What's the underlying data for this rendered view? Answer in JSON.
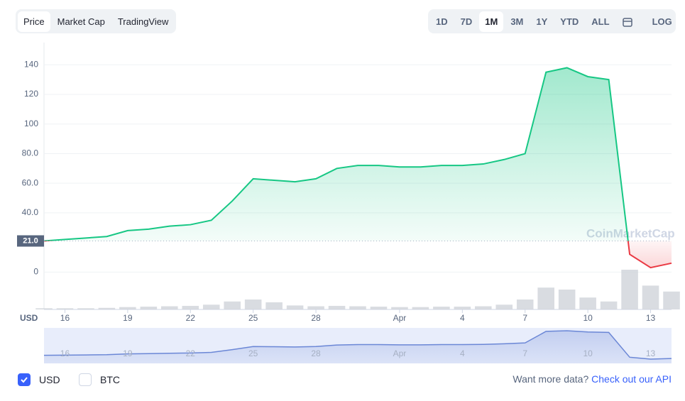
{
  "ui": {
    "tabs": [
      "Price",
      "Market Cap",
      "TradingView"
    ],
    "ranges": [
      "1D",
      "7D",
      "1M",
      "3M",
      "1Y",
      "YTD",
      "ALL"
    ],
    "log": "LOG",
    "currencies": [
      "USD",
      "BTC"
    ],
    "footer": {
      "text": "Want more data?",
      "link": "Check out our API"
    },
    "watermark": "CoinMarketCap"
  },
  "chart_data": {
    "type": "line",
    "x_axis_label": "USD",
    "categories": [
      null,
      "16",
      null,
      null,
      "19",
      null,
      null,
      "22",
      null,
      null,
      "25",
      null,
      null,
      "28",
      null,
      null,
      null,
      "Apr",
      null,
      null,
      "4",
      null,
      null,
      "7",
      null,
      null,
      "10",
      null,
      null,
      "13",
      null
    ],
    "series": [
      {
        "color": "#16c784",
        "values": [
          21,
          22,
          23,
          24,
          28,
          29,
          31,
          32,
          35,
          48,
          63,
          62,
          61,
          63,
          70,
          72,
          72,
          71,
          71,
          72,
          72,
          73,
          76,
          80,
          135,
          138,
          132,
          130,
          12,
          3,
          6
        ]
      }
    ],
    "negative_color": "#ea3943",
    "price_marker": {
      "value": 21,
      "label": "21.0"
    },
    "volume": {
      "color": "#d0d3da",
      "values": [
        3,
        3,
        3,
        4,
        6,
        7,
        8,
        9,
        12,
        20,
        25,
        18,
        10,
        8,
        9,
        8,
        7,
        6,
        6,
        7,
        7,
        8,
        12,
        25,
        55,
        50,
        30,
        20,
        100,
        60,
        45
      ]
    },
    "navigator_color": "#6b87d6",
    "ylim": [
      -8,
      155
    ],
    "yticks": [
      0,
      {
        "value": 40,
        "label": "40.0"
      },
      {
        "value": 60,
        "label": "60.0"
      },
      {
        "value": 80,
        "label": "80.0"
      },
      100,
      120,
      140
    ],
    "grid": true
  }
}
